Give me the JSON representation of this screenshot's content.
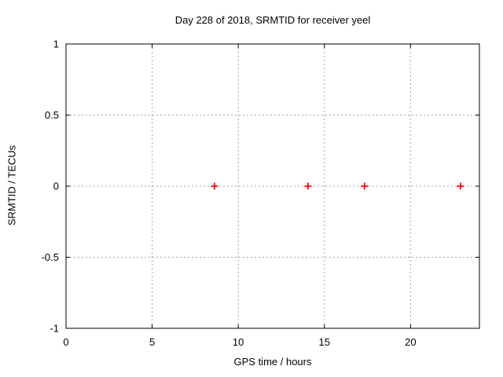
{
  "window": {
    "background": "#ffffff"
  },
  "chart_data": {
    "type": "scatter",
    "title": "Day 228 of 2018, SRMTID for receiver yeel",
    "xlabel": "GPS time / hours",
    "ylabel": "SRMTID / TECUs",
    "xlim": [
      0,
      24
    ],
    "ylim": [
      -1,
      1
    ],
    "xticks": {
      "values": [
        0,
        5,
        10,
        15,
        20
      ],
      "labels": [
        "0",
        "5",
        "10",
        "15",
        "20"
      ]
    },
    "yticks": {
      "values": [
        1,
        0.5,
        0,
        -0.5,
        -1
      ],
      "labels": [
        "1",
        "0.5",
        "0",
        "-0.5",
        "-1"
      ]
    },
    "grid": true,
    "legend": "none",
    "series": [
      {
        "name": "SRMTID",
        "marker": "plus",
        "color": "#ff0000",
        "points": [
          {
            "x": 8.62,
            "y": 0.0
          },
          {
            "x": 14.05,
            "y": 0.0
          },
          {
            "x": 17.33,
            "y": 0.0
          },
          {
            "x": 22.9,
            "y": 0.0
          }
        ]
      }
    ],
    "style": {
      "border_color": "#000000",
      "grid_color": "#a0a0a0",
      "text_color": "#000000",
      "tick_label_font_px": 13,
      "marker_half_size": 4.5,
      "tick_length": 5
    }
  }
}
